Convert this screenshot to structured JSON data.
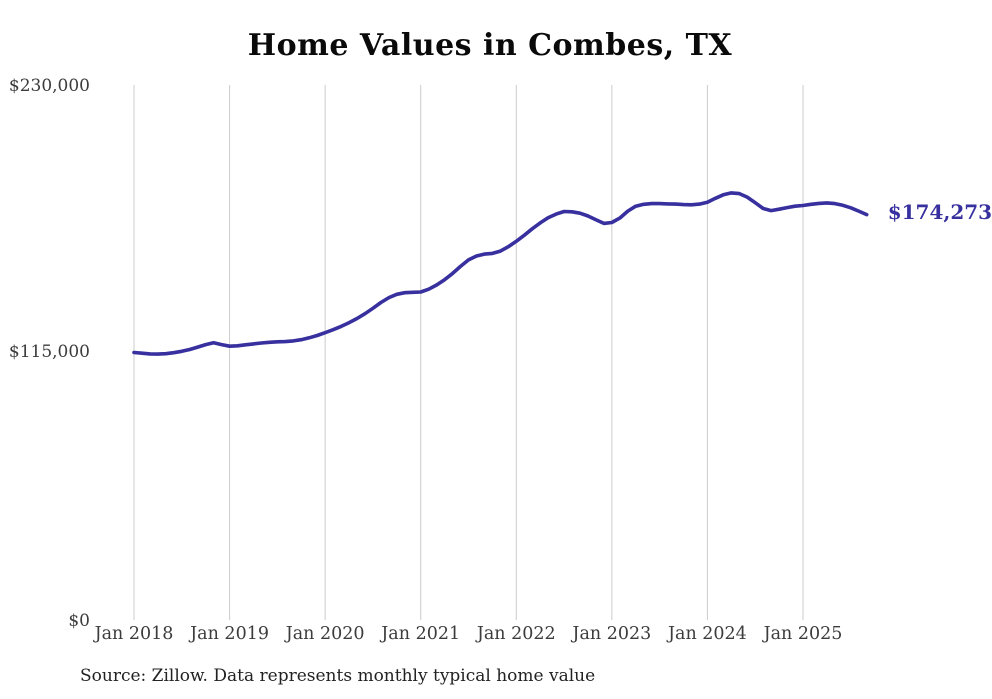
{
  "chart_data": {
    "type": "line",
    "title": "Home Values in Combes, TX",
    "series_name": "Monthly typical home value",
    "frequency": "monthly",
    "x_months": [
      "2018-01",
      "2018-02",
      "2018-03",
      "2018-04",
      "2018-05",
      "2018-06",
      "2018-07",
      "2018-08",
      "2018-09",
      "2018-10",
      "2018-11",
      "2018-12",
      "2019-01",
      "2019-02",
      "2019-03",
      "2019-04",
      "2019-05",
      "2019-06",
      "2019-07",
      "2019-08",
      "2019-09",
      "2019-10",
      "2019-11",
      "2019-12",
      "2020-01",
      "2020-02",
      "2020-03",
      "2020-04",
      "2020-05",
      "2020-06",
      "2020-07",
      "2020-08",
      "2020-09",
      "2020-10",
      "2020-11",
      "2020-12",
      "2021-01",
      "2021-02",
      "2021-03",
      "2021-04",
      "2021-05",
      "2021-06",
      "2021-07",
      "2021-08",
      "2021-09",
      "2021-10",
      "2021-11",
      "2021-12",
      "2022-01",
      "2022-02",
      "2022-03",
      "2022-04",
      "2022-05",
      "2022-06",
      "2022-07",
      "2022-08",
      "2022-09",
      "2022-10",
      "2022-11",
      "2022-12",
      "2023-01",
      "2023-02",
      "2023-03",
      "2023-04",
      "2023-05",
      "2023-06",
      "2023-07",
      "2023-08",
      "2023-09",
      "2023-10",
      "2023-11",
      "2023-12",
      "2024-01",
      "2024-02",
      "2024-03",
      "2024-04",
      "2024-05",
      "2024-06",
      "2024-07",
      "2024-08",
      "2024-09",
      "2024-10",
      "2024-11",
      "2024-12",
      "2025-01",
      "2025-02",
      "2025-03",
      "2025-04",
      "2025-05",
      "2025-06",
      "2025-07",
      "2025-08",
      "2025-09"
    ],
    "values": [
      115000,
      114700,
      114400,
      114300,
      114500,
      114900,
      115500,
      116300,
      117300,
      118400,
      119200,
      118400,
      117700,
      117900,
      118300,
      118700,
      119100,
      119400,
      119600,
      119700,
      120000,
      120500,
      121300,
      122300,
      123500,
      124800,
      126200,
      127800,
      129600,
      131700,
      134000,
      136500,
      138600,
      140000,
      140700,
      140900,
      141000,
      142200,
      144000,
      146300,
      149000,
      152000,
      154800,
      156500,
      157300,
      157600,
      158600,
      160500,
      162800,
      165400,
      168200,
      170700,
      172900,
      174500,
      175600,
      175500,
      174900,
      173700,
      172100,
      170500,
      170900,
      172800,
      175800,
      177900,
      178700,
      179000,
      179000,
      178900,
      178800,
      178600,
      178500,
      178800,
      179600,
      181300,
      182800,
      183600,
      183300,
      181800,
      179400,
      176900,
      176000,
      176600,
      177300,
      177900,
      178200,
      178700,
      179100,
      179300,
      179000,
      178300,
      177200,
      175800,
      174273
    ],
    "x_tick_labels": [
      "Jan 2018",
      "Jan 2019",
      "Jan 2020",
      "Jan 2021",
      "Jan 2022",
      "Jan 2023",
      "Jan 2024",
      "Jan 2025"
    ],
    "y_tick_labels": [
      "$230,000",
      "$115,000",
      "$0"
    ],
    "ylim": [
      0,
      230000
    ],
    "end_label": "$174,273",
    "source": "Source: Zillow. Data represents monthly typical home value",
    "grid": "vertical-only",
    "legend": "none",
    "line_color": "#37309e",
    "grid_color": "#cccccc",
    "label_color": "#3c3c3c",
    "title_color": "#0a0a0a"
  }
}
